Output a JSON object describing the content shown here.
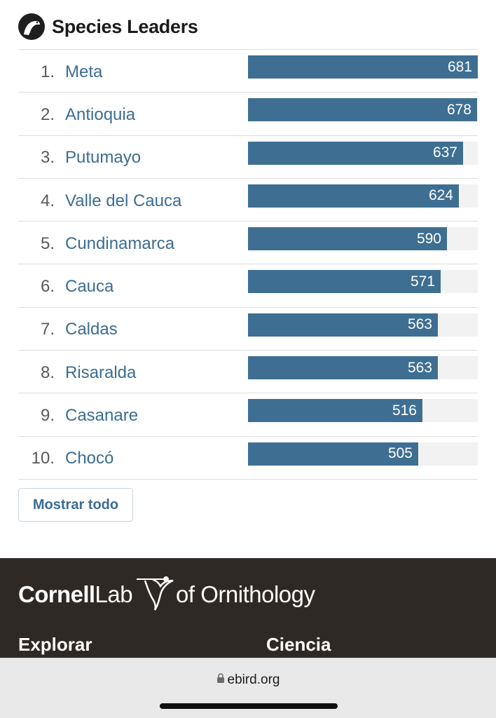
{
  "header": {
    "title": "Species Leaders",
    "logo_icon": "ebird-logo-icon"
  },
  "leaders": {
    "max_value": 681,
    "rows": [
      {
        "rank": "1.",
        "name": "Meta",
        "count": "681",
        "value": 681
      },
      {
        "rank": "2.",
        "name": "Antioquia",
        "count": "678",
        "value": 678
      },
      {
        "rank": "3.",
        "name": "Putumayo",
        "count": "637",
        "value": 637
      },
      {
        "rank": "4.",
        "name": "Valle del Cauca",
        "count": "624",
        "value": 624
      },
      {
        "rank": "5.",
        "name": "Cundinamarca",
        "count": "590",
        "value": 590
      },
      {
        "rank": "6.",
        "name": "Cauca",
        "count": "571",
        "value": 571
      },
      {
        "rank": "7.",
        "name": "Caldas",
        "count": "563",
        "value": 563
      },
      {
        "rank": "8.",
        "name": "Risaralda",
        "count": "563",
        "value": 563
      },
      {
        "rank": "9.",
        "name": "Casanare",
        "count": "516",
        "value": 516
      },
      {
        "rank": "10.",
        "name": "Chocó",
        "count": "505",
        "value": 505
      }
    ]
  },
  "show_all_label": "Mostrar todo",
  "footer": {
    "brand_cornell": "Cornell",
    "brand_lab": "Lab",
    "brand_of": "of Ornithology",
    "col_explorar": "Explorar",
    "col_ciencia": "Ciencia"
  },
  "browser": {
    "url": "ebird.org"
  },
  "colors": {
    "bar": "#3e6f92",
    "link": "#3b6d93",
    "footer_bg": "#2f2925"
  }
}
